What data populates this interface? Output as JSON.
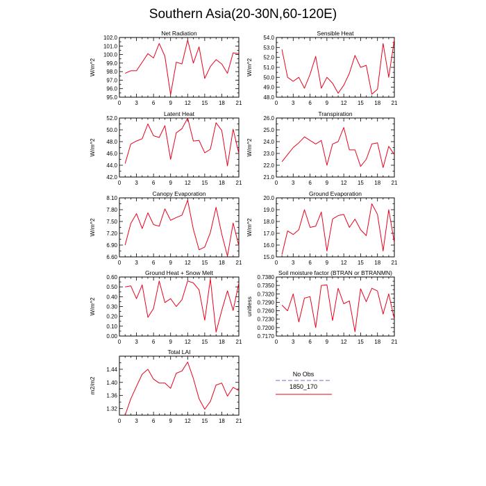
{
  "title": "Southern Asia(20-30N,60-120E)",
  "colors": {
    "model_line": "#e8001a",
    "obs_line": "#8a8ad8",
    "axis": "#000000"
  },
  "legend": {
    "obs_label": "No Obs",
    "model_label": "1850_170"
  },
  "chart_data": [
    {
      "type": "line",
      "title": "Net Radiation",
      "ylabel": "W/m^2",
      "xlim": [
        0,
        21
      ],
      "ylim": [
        95.0,
        102.0
      ],
      "xticks": [
        0,
        3,
        6,
        9,
        12,
        15,
        18,
        21
      ],
      "xtick_labels": [
        "0",
        "3",
        "6",
        "9",
        "12",
        "15",
        "18",
        "21"
      ],
      "yticks": [
        95.0,
        96.0,
        97.0,
        98.0,
        99.0,
        100.0,
        101.0,
        102.0
      ],
      "ytick_labels": [
        "95.0",
        "96.0",
        "97.0",
        "98.0",
        "99.0",
        "100.0",
        "101.0",
        "102.0"
      ],
      "x": [
        1,
        2,
        3,
        4,
        5,
        6,
        7,
        8,
        9,
        10,
        11,
        12,
        13,
        14,
        15,
        16,
        17,
        18,
        19,
        20,
        21
      ],
      "series": [
        {
          "values": [
            97.8,
            98.1,
            98.1,
            99.1,
            100.1,
            99.6,
            101.3,
            99.8,
            95.3,
            99.1,
            98.9,
            101.7,
            99.0,
            100.9,
            97.2,
            98.6,
            99.4,
            98.9,
            97.8,
            100.2,
            100.1
          ]
        }
      ]
    },
    {
      "type": "line",
      "title": "Sensible Heat",
      "ylabel": "W/m^2",
      "xlim": [
        0,
        21
      ],
      "ylim": [
        48.0,
        54.0
      ],
      "xticks": [
        0,
        3,
        6,
        9,
        12,
        15,
        18,
        21
      ],
      "xtick_labels": [
        "0",
        "3",
        "6",
        "9",
        "12",
        "15",
        "18",
        "21"
      ],
      "yticks": [
        48.0,
        49.0,
        50.0,
        51.0,
        52.0,
        53.0,
        54.0
      ],
      "ytick_labels": [
        "48.0",
        "49.0",
        "50.0",
        "51.0",
        "52.0",
        "53.0",
        "54.0"
      ],
      "x": [
        1,
        2,
        3,
        4,
        5,
        6,
        7,
        8,
        9,
        10,
        11,
        12,
        13,
        14,
        15,
        16,
        17,
        18,
        19,
        20,
        21
      ],
      "series": [
        {
          "values": [
            52.8,
            50.0,
            49.6,
            50.0,
            48.9,
            50.3,
            52.1,
            48.9,
            50.0,
            49.4,
            48.4,
            49.2,
            50.4,
            52.2,
            51.0,
            51.2,
            48.3,
            48.8,
            53.4,
            50.0,
            53.8
          ]
        }
      ]
    },
    {
      "type": "line",
      "title": "Latent Heat",
      "ylabel": "W/m^2",
      "xlim": [
        0,
        21
      ],
      "ylim": [
        42.0,
        52.0
      ],
      "xticks": [
        0,
        3,
        6,
        9,
        12,
        15,
        18,
        21
      ],
      "xtick_labels": [
        "0",
        "3",
        "6",
        "9",
        "12",
        "15",
        "18",
        "21"
      ],
      "yticks": [
        42.0,
        44.0,
        46.0,
        48.0,
        50.0,
        52.0
      ],
      "ytick_labels": [
        "42.0",
        "44.0",
        "46.0",
        "48.0",
        "50.0",
        "52.0"
      ],
      "x": [
        1,
        2,
        3,
        4,
        5,
        6,
        7,
        8,
        9,
        10,
        11,
        12,
        13,
        14,
        15,
        16,
        17,
        18,
        19,
        20,
        21
      ],
      "series": [
        {
          "values": [
            44.3,
            47.6,
            48.1,
            48.5,
            51.0,
            49.0,
            48.7,
            50.7,
            45.0,
            49.5,
            50.2,
            52.0,
            48.1,
            48.2,
            46.1,
            46.7,
            51.2,
            49.9,
            43.9,
            50.1,
            46.0
          ]
        }
      ]
    },
    {
      "type": "line",
      "title": "Transpiration",
      "ylabel": "W/m^2",
      "xlim": [
        0,
        21
      ],
      "ylim": [
        21.0,
        26.0
      ],
      "xticks": [
        0,
        3,
        6,
        9,
        12,
        15,
        18,
        21
      ],
      "xtick_labels": [
        "0",
        "3",
        "6",
        "9",
        "12",
        "15",
        "18",
        "21"
      ],
      "yticks": [
        21.0,
        22.0,
        23.0,
        24.0,
        25.0,
        26.0
      ],
      "ytick_labels": [
        "21.0",
        "22.0",
        "23.0",
        "24.0",
        "25.0",
        "26.0"
      ],
      "x": [
        1,
        2,
        3,
        4,
        5,
        6,
        7,
        8,
        9,
        10,
        11,
        12,
        13,
        14,
        15,
        16,
        17,
        18,
        19,
        20,
        21
      ],
      "series": [
        {
          "values": [
            22.3,
            22.9,
            23.5,
            23.9,
            24.4,
            24.1,
            23.8,
            24.1,
            22.0,
            23.8,
            24.0,
            25.2,
            23.3,
            23.3,
            21.9,
            22.5,
            23.8,
            23.9,
            21.8,
            23.6,
            22.9
          ]
        }
      ]
    },
    {
      "type": "line",
      "title": "Canopy Evaporation",
      "ylabel": "W/m^2",
      "xlim": [
        0,
        21
      ],
      "ylim": [
        6.6,
        8.1
      ],
      "xticks": [
        0,
        3,
        6,
        9,
        12,
        15,
        18,
        21
      ],
      "xtick_labels": [
        "0",
        "3",
        "6",
        "9",
        "12",
        "15",
        "18",
        "21"
      ],
      "yticks": [
        6.6,
        6.9,
        7.2,
        7.5,
        7.8,
        8.1
      ],
      "ytick_labels": [
        "6.60",
        "6.90",
        "7.20",
        "7.50",
        "7.80",
        "8.10"
      ],
      "x": [
        1,
        2,
        3,
        4,
        5,
        6,
        7,
        8,
        9,
        10,
        11,
        12,
        13,
        14,
        15,
        16,
        17,
        18,
        19,
        20,
        21
      ],
      "series": [
        {
          "values": [
            6.9,
            7.45,
            7.7,
            7.32,
            7.72,
            7.42,
            7.38,
            7.82,
            7.53,
            7.6,
            7.66,
            8.04,
            7.3,
            6.78,
            6.85,
            7.22,
            7.86,
            7.18,
            6.62,
            7.46,
            6.88
          ]
        }
      ]
    },
    {
      "type": "line",
      "title": "Ground Evaporation",
      "ylabel": "W/m^2",
      "xlim": [
        0,
        21
      ],
      "ylim": [
        15.0,
        20.0
      ],
      "xticks": [
        0,
        3,
        6,
        9,
        12,
        15,
        18,
        21
      ],
      "xtick_labels": [
        "0",
        "3",
        "6",
        "9",
        "12",
        "15",
        "18",
        "21"
      ],
      "yticks": [
        15.0,
        16.0,
        17.0,
        18.0,
        19.0,
        20.0
      ],
      "ytick_labels": [
        "15.0",
        "16.0",
        "17.0",
        "18.0",
        "19.0",
        "20.0"
      ],
      "x": [
        1,
        2,
        3,
        4,
        5,
        6,
        7,
        8,
        9,
        10,
        11,
        12,
        13,
        14,
        15,
        16,
        17,
        18,
        19,
        20,
        21
      ],
      "series": [
        {
          "values": [
            15.2,
            17.2,
            16.9,
            17.3,
            19.0,
            17.5,
            17.6,
            18.8,
            15.5,
            18.2,
            18.5,
            18.6,
            17.5,
            18.2,
            17.3,
            16.8,
            19.5,
            18.6,
            15.5,
            19.0,
            16.2
          ]
        }
      ]
    },
    {
      "type": "line",
      "title": "Ground Heat + Snow Melt",
      "ylabel": "W/m^2",
      "xlim": [
        0,
        21
      ],
      "ylim": [
        0.0,
        0.6
      ],
      "xticks": [
        0,
        3,
        6,
        9,
        12,
        15,
        18,
        21
      ],
      "xtick_labels": [
        "0",
        "3",
        "6",
        "9",
        "12",
        "15",
        "18",
        "21"
      ],
      "yticks": [
        0.0,
        0.1,
        0.2,
        0.3,
        0.4,
        0.5,
        0.6
      ],
      "ytick_labels": [
        "0.00",
        "0.10",
        "0.20",
        "0.30",
        "0.40",
        "0.50",
        "0.60"
      ],
      "x": [
        1,
        2,
        3,
        4,
        5,
        6,
        7,
        8,
        9,
        10,
        11,
        12,
        13,
        14,
        15,
        16,
        17,
        18,
        19,
        20,
        21
      ],
      "series": [
        {
          "values": [
            0.5,
            0.51,
            0.38,
            0.52,
            0.19,
            0.28,
            0.56,
            0.34,
            0.38,
            0.3,
            0.37,
            0.56,
            0.54,
            0.47,
            0.16,
            0.58,
            0.04,
            0.26,
            0.46,
            0.26,
            0.54
          ]
        }
      ]
    },
    {
      "type": "line",
      "title": "Soil moisture factor (BTRAN or BTRANMN)",
      "ylabel": "unitless",
      "xlim": [
        0,
        21
      ],
      "ylim": [
        0.717,
        0.738
      ],
      "xticks": [
        0,
        3,
        6,
        9,
        12,
        15,
        18,
        21
      ],
      "xtick_labels": [
        "0",
        "3",
        "6",
        "9",
        "12",
        "15",
        "18",
        "21"
      ],
      "yticks": [
        0.717,
        0.72,
        0.723,
        0.726,
        0.729,
        0.732,
        0.735,
        0.738
      ],
      "ytick_labels": [
        "0.7170",
        "0.7200",
        "0.7230",
        "0.7260",
        "0.7290",
        "0.7320",
        "0.7350",
        "0.7380"
      ],
      "x": [
        1,
        2,
        3,
        4,
        5,
        6,
        7,
        8,
        9,
        10,
        11,
        12,
        13,
        14,
        15,
        16,
        17,
        18,
        19,
        20,
        21
      ],
      "series": [
        {
          "values": [
            0.728,
            0.726,
            0.732,
            0.722,
            0.7305,
            0.731,
            0.72,
            0.735,
            0.7352,
            0.7225,
            0.734,
            0.7285,
            0.7295,
            0.7185,
            0.7338,
            0.7292,
            0.734,
            0.733,
            0.7248,
            0.732,
            0.723
          ]
        }
      ]
    },
    {
      "type": "line",
      "title": "Total LAI",
      "ylabel": "m2/m2",
      "xlim": [
        0,
        21
      ],
      "ylim": [
        1.3,
        1.48
      ],
      "xticks": [
        0,
        3,
        6,
        9,
        12,
        15,
        18,
        21
      ],
      "xtick_labels": [
        "0",
        "3",
        "6",
        "9",
        "12",
        "15",
        "18",
        "21"
      ],
      "yticks": [
        1.32,
        1.36,
        1.4,
        1.44
      ],
      "ytick_labels": [
        "1.32",
        "1.36",
        "1.40",
        "1.44"
      ],
      "x": [
        1,
        2,
        3,
        4,
        5,
        6,
        7,
        8,
        9,
        10,
        11,
        12,
        13,
        14,
        15,
        16,
        17,
        18,
        19,
        20,
        21
      ],
      "series": [
        {
          "values": [
            1.3,
            1.35,
            1.388,
            1.425,
            1.44,
            1.41,
            1.398,
            1.398,
            1.382,
            1.428,
            1.435,
            1.462,
            1.412,
            1.35,
            1.318,
            1.342,
            1.392,
            1.398,
            1.358,
            1.385,
            1.375
          ]
        }
      ]
    }
  ]
}
